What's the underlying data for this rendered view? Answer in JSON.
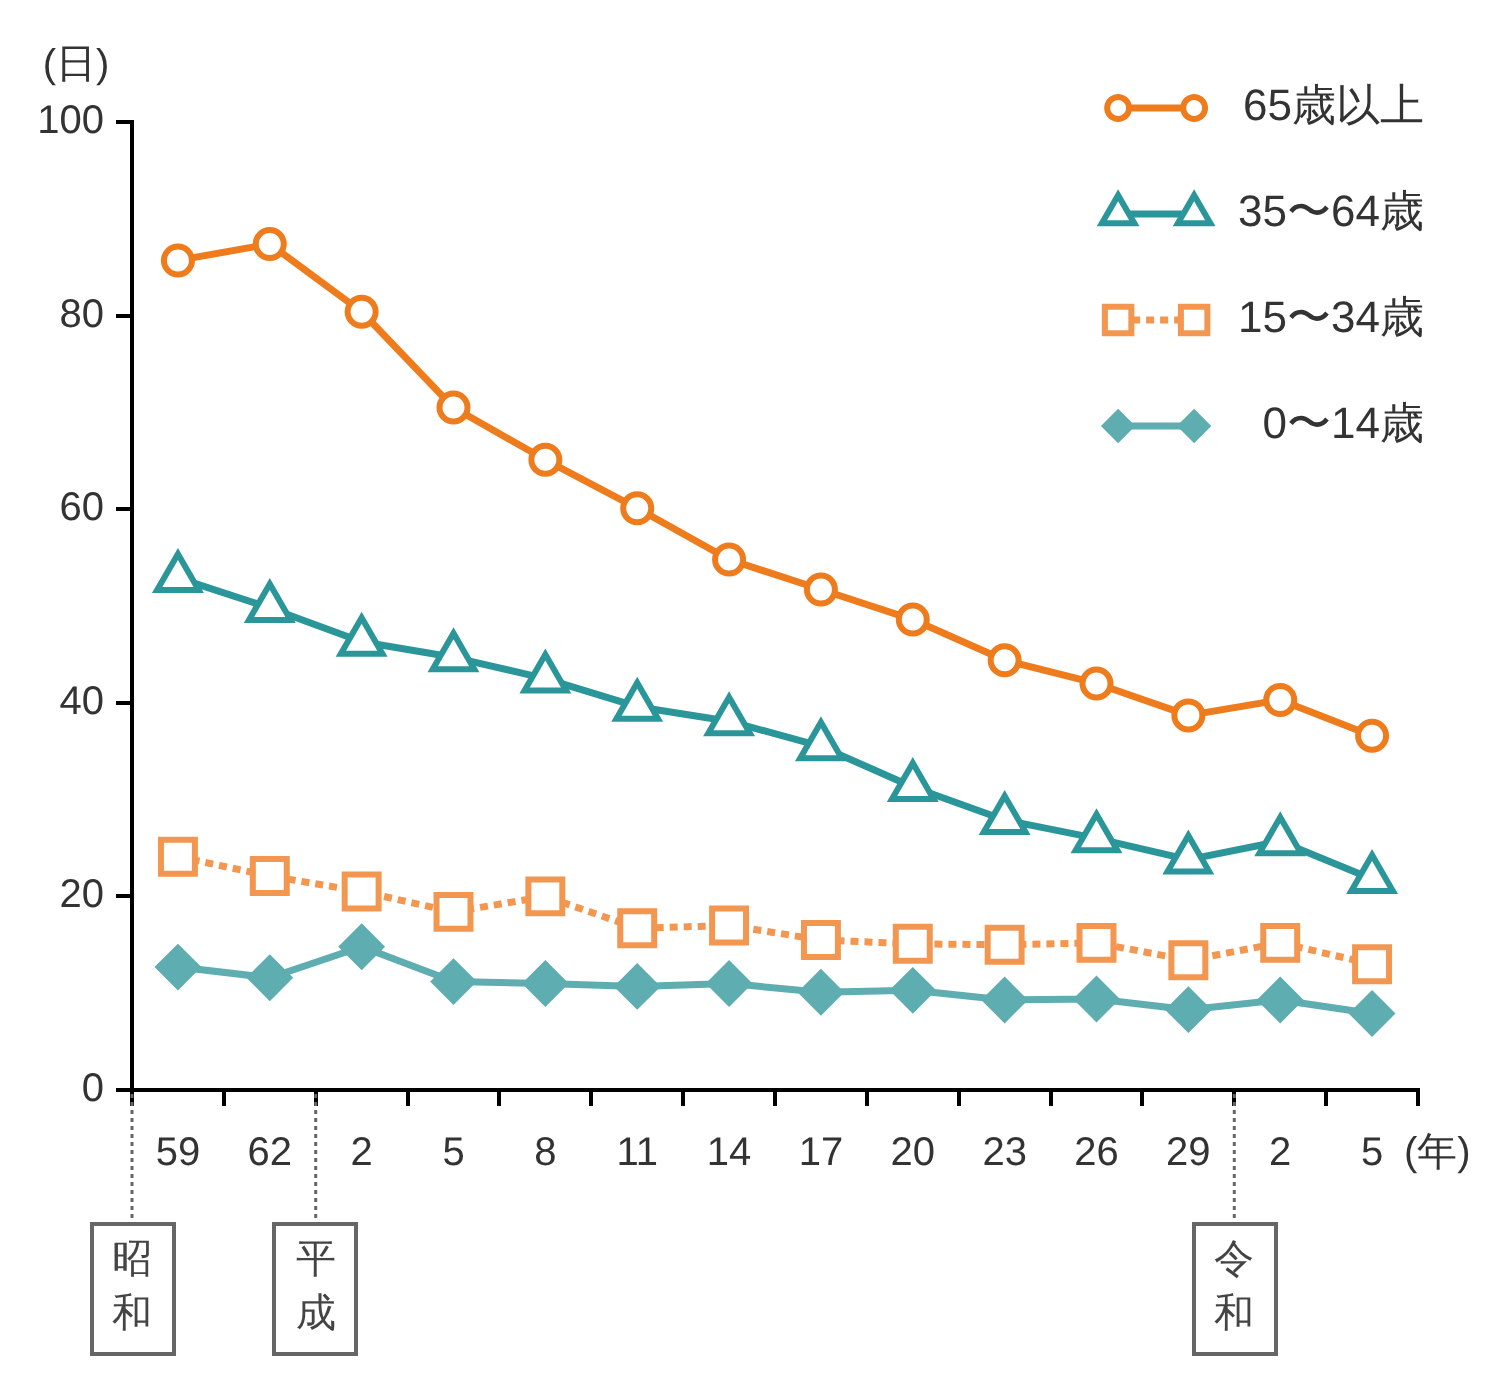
{
  "chart_data": {
    "type": "line",
    "ylabel": "(日)",
    "xlabel": "(年)",
    "categories": [
      "59",
      "62",
      "2",
      "5",
      "8",
      "11",
      "14",
      "17",
      "20",
      "23",
      "26",
      "29",
      "2",
      "5"
    ],
    "series": [
      {
        "name": "65歳以上",
        "color": "#ee7b1c",
        "marker": "circle",
        "line_style": "solid",
        "values": [
          85.7,
          87.4,
          80.4,
          70.5,
          65.1,
          60.1,
          54.8,
          51.7,
          48.6,
          44.4,
          42.0,
          38.7,
          40.3,
          36.6
        ]
      },
      {
        "name": "35〜64歳",
        "color": "#2a9699",
        "marker": "triangle",
        "line_style": "solid",
        "values": [
          52.9,
          49.8,
          46.3,
          44.7,
          42.5,
          39.6,
          38.1,
          35.5,
          31.3,
          27.9,
          26.0,
          23.8,
          25.7,
          21.8
        ]
      },
      {
        "name": "15〜34歳",
        "color": "#f29650",
        "marker": "square",
        "line_style": "dotted",
        "values": [
          24.1,
          22.1,
          20.5,
          18.4,
          20.0,
          16.7,
          17.0,
          15.5,
          15.1,
          15.0,
          15.2,
          13.4,
          15.2,
          13.0
        ]
      },
      {
        "name": "0〜14歳",
        "color": "#5eadb0",
        "marker": "diamond",
        "line_style": "solid",
        "values": [
          12.7,
          11.6,
          14.8,
          11.2,
          11.0,
          10.7,
          11.0,
          10.1,
          10.3,
          9.3,
          9.4,
          8.3,
          9.3,
          7.9
        ]
      }
    ],
    "ylim": [
      0,
      100
    ],
    "yticks": [
      0,
      20,
      40,
      60,
      80,
      100
    ],
    "legend": "top right",
    "annotations": [
      "昭和",
      "平成",
      "令和"
    ]
  }
}
